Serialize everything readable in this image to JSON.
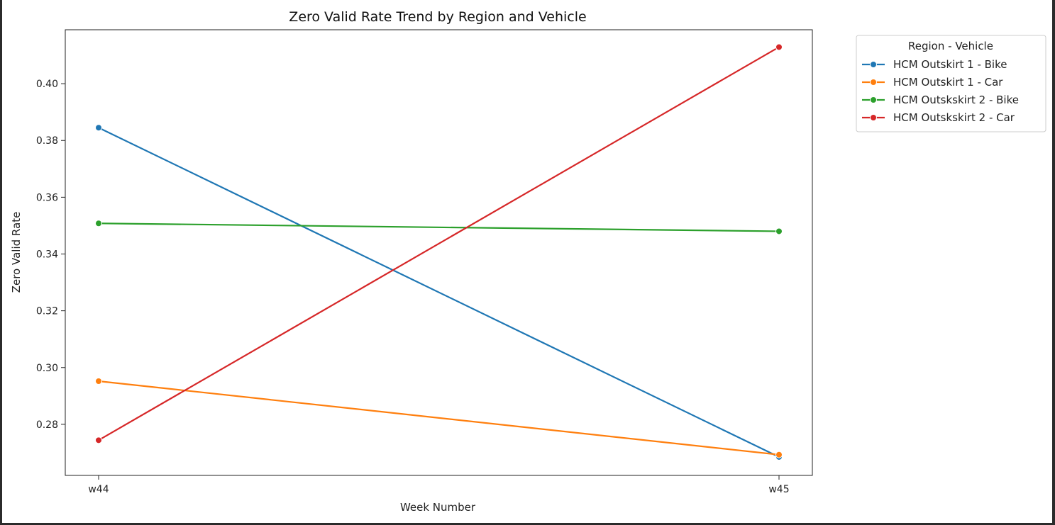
{
  "chart_data": {
    "type": "line",
    "title": "Zero Valid Rate Trend by Region and Vehicle",
    "xlabel": "Week Number",
    "ylabel": "Zero Valid Rate",
    "categories": [
      "w44",
      "w45"
    ],
    "ylim": [
      0.262,
      0.419
    ],
    "yticks": [
      0.28,
      0.3,
      0.32,
      0.34,
      0.36,
      0.38,
      0.4
    ],
    "grid": false,
    "legend": {
      "title": "Region - Vehicle",
      "placement": "outside-top-right"
    },
    "series": [
      {
        "name": "HCM Outskirt 1 - Bike",
        "color": "#1f77b4",
        "values": [
          0.3845,
          0.2685
        ]
      },
      {
        "name": "HCM Outskirt 1 - Car",
        "color": "#ff7f0e",
        "values": [
          0.2952,
          0.2693
        ]
      },
      {
        "name": "HCM Outskskirt 2 - Bike",
        "color": "#2ca02c",
        "values": [
          0.3508,
          0.348
        ]
      },
      {
        "name": "HCM Outskskirt 2 - Car",
        "color": "#d62728",
        "values": [
          0.2744,
          0.4129
        ]
      }
    ]
  }
}
